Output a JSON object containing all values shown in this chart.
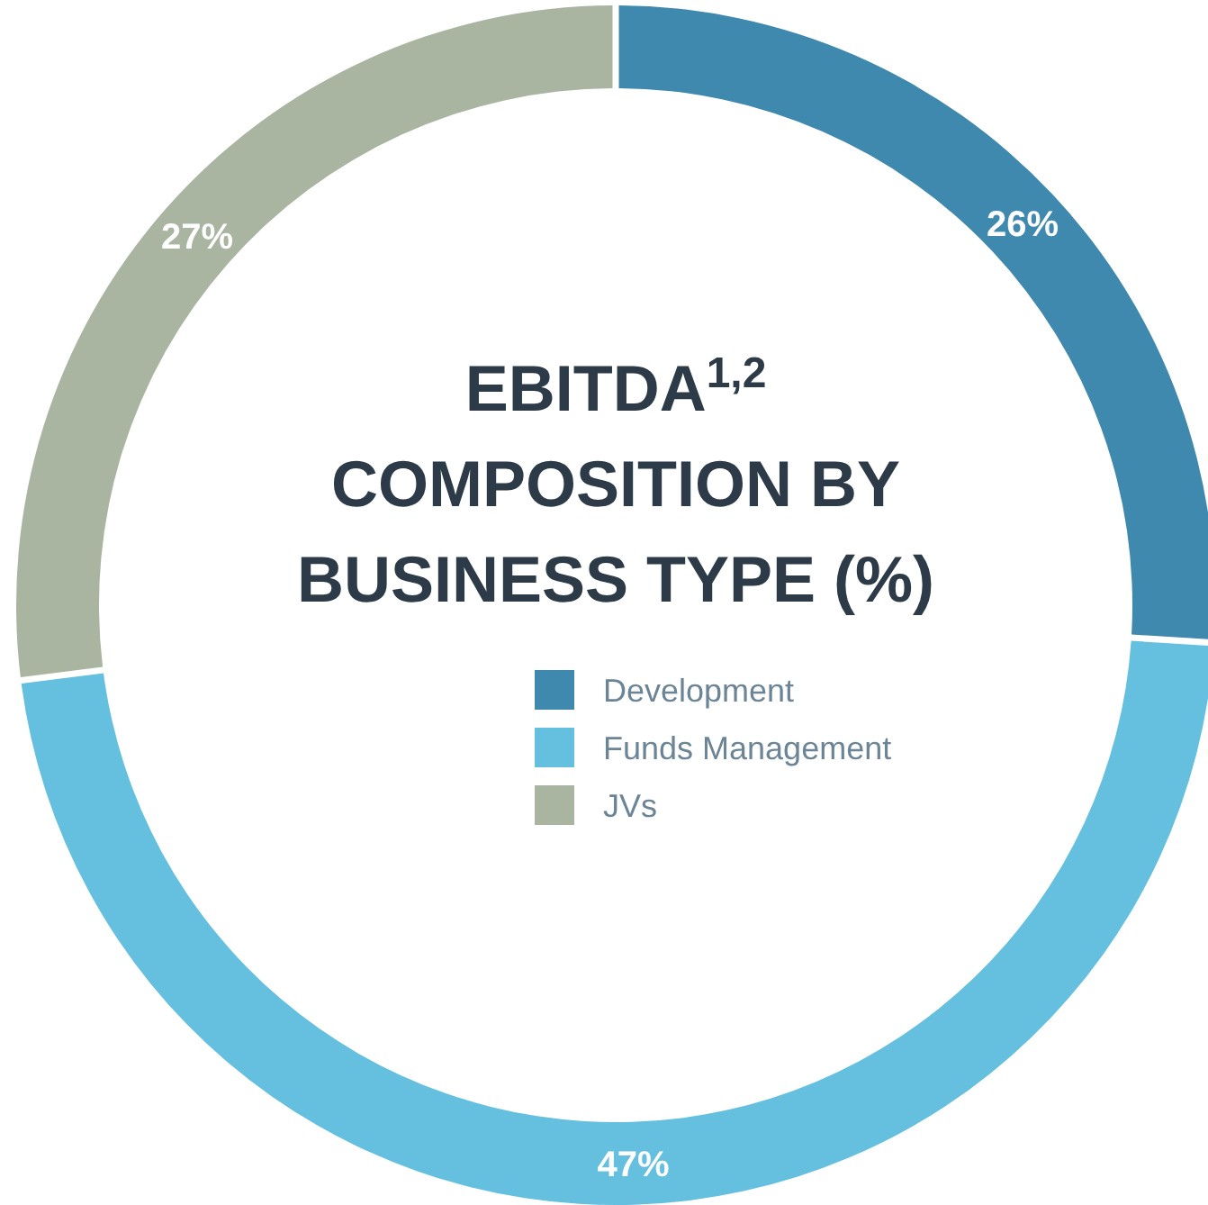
{
  "chart_data": {
    "type": "donut",
    "title": "EBITDA$^{1,2}$ COMPOSITION BY BUSINESS TYPE (%)",
    "categories": [
      "Development",
      "Funds Management",
      "JVs"
    ],
    "values": [
      26,
      47,
      27
    ],
    "value_labels": [
      "26%",
      "47%",
      "27%"
    ],
    "colors": [
      "#3f88ae",
      "#64c0de",
      "#a9b5a1"
    ],
    "legend": "center"
  }
}
